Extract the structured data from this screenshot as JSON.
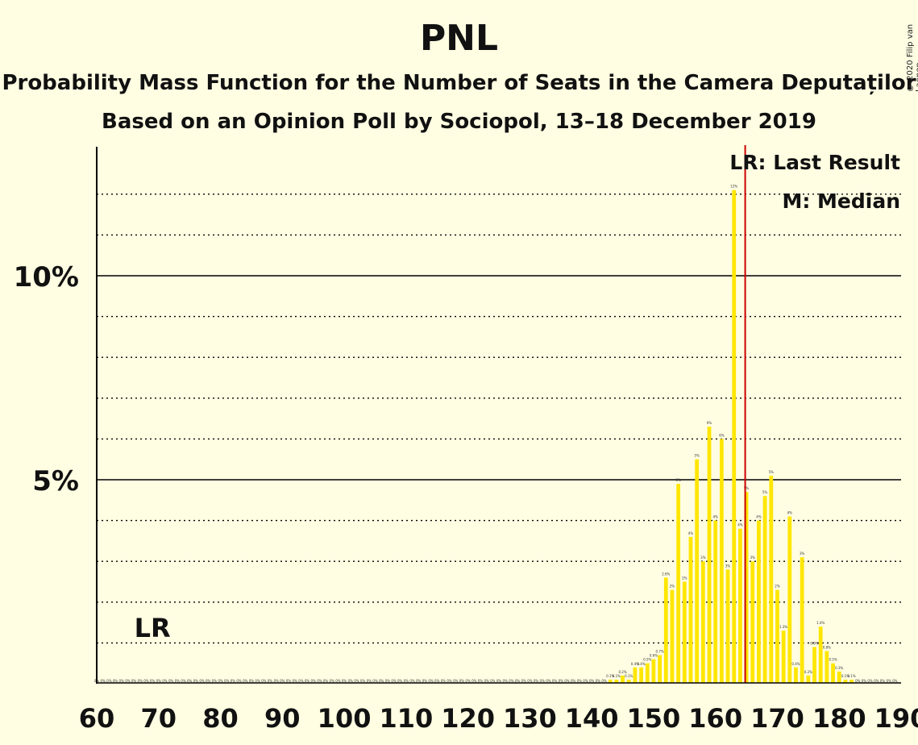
{
  "title": "PNL",
  "subtitle1": "Probability Mass Function for the Number of Seats in the Camera Deputaților",
  "subtitle2": "Based on an Opinion Poll by Sociopol, 13–18 December 2019",
  "copyright": "© 2020 Filip van Laenen",
  "colors": {
    "background": "#fffde2",
    "bar": "#ffe600",
    "last_result_line": "#cc0000",
    "axis": "#000000"
  },
  "chart_data": {
    "type": "bar",
    "x_range": [
      60,
      190
    ],
    "ylim": [
      0,
      13
    ],
    "y_unit": "%",
    "grid": "dotted every 1%, solid at 5% and 10%",
    "x_ticks": [
      "60",
      "70",
      "80",
      "90",
      "100",
      "110",
      "120",
      "130",
      "140",
      "150",
      "160",
      "170",
      "180",
      "190"
    ],
    "y_ticks": [
      {
        "value": 5,
        "label": "5%"
      },
      {
        "value": 10,
        "label": "10%"
      }
    ],
    "legend": {
      "position": "top-right",
      "items": [
        "LR: Last Result",
        "M: Median"
      ]
    },
    "last_result": {
      "seats": 69,
      "label": "LR"
    },
    "median": {
      "seats": 164,
      "label": "M"
    },
    "majority_line": 165,
    "bars": [
      {
        "seats": 143,
        "value": 0.1,
        "label": "0.1%"
      },
      {
        "seats": 144,
        "value": 0.1,
        "label": "0.1%"
      },
      {
        "seats": 145,
        "value": 0.2,
        "label": "0.2%"
      },
      {
        "seats": 146,
        "value": 0.1,
        "label": "0.1%"
      },
      {
        "seats": 147,
        "value": 0.4,
        "label": "0.4%"
      },
      {
        "seats": 148,
        "value": 0.4,
        "label": "0.4%"
      },
      {
        "seats": 149,
        "value": 0.5,
        "label": "0.5%"
      },
      {
        "seats": 150,
        "value": 0.6,
        "label": "0.6%"
      },
      {
        "seats": 151,
        "value": 0.7,
        "label": "0.7%"
      },
      {
        "seats": 152,
        "value": 2.6,
        "label": "2.6%"
      },
      {
        "seats": 153,
        "value": 2.3,
        "label": "2%"
      },
      {
        "seats": 154,
        "value": 4.9,
        "label": "5%"
      },
      {
        "seats": 155,
        "value": 2.5,
        "label": "2%"
      },
      {
        "seats": 156,
        "value": 3.6,
        "label": "4%"
      },
      {
        "seats": 157,
        "value": 5.5,
        "label": "5%"
      },
      {
        "seats": 158,
        "value": 3.0,
        "label": "3%"
      },
      {
        "seats": 159,
        "value": 6.3,
        "label": "6%"
      },
      {
        "seats": 160,
        "value": 4.0,
        "label": "4%"
      },
      {
        "seats": 161,
        "value": 6.0,
        "label": "6%"
      },
      {
        "seats": 162,
        "value": 2.8,
        "label": "3%"
      },
      {
        "seats": 163,
        "value": 12.1,
        "label": "12%"
      },
      {
        "seats": 164,
        "value": 3.8,
        "label": "4%"
      },
      {
        "seats": 165,
        "value": 4.7,
        "label": "5%"
      },
      {
        "seats": 166,
        "value": 3.0,
        "label": "3%"
      },
      {
        "seats": 167,
        "value": 4.0,
        "label": "4%"
      },
      {
        "seats": 168,
        "value": 4.6,
        "label": "5%"
      },
      {
        "seats": 169,
        "value": 5.1,
        "label": "5%"
      },
      {
        "seats": 170,
        "value": 2.3,
        "label": "2%"
      },
      {
        "seats": 171,
        "value": 1.3,
        "label": "1.3%"
      },
      {
        "seats": 172,
        "value": 4.1,
        "label": "4%"
      },
      {
        "seats": 173,
        "value": 0.4,
        "label": "0.4%"
      },
      {
        "seats": 174,
        "value": 3.1,
        "label": "3%"
      },
      {
        "seats": 175,
        "value": 0.2,
        "label": "0.2%"
      },
      {
        "seats": 176,
        "value": 0.9,
        "label": "0.9%"
      },
      {
        "seats": 177,
        "value": 1.4,
        "label": "1.4%"
      },
      {
        "seats": 178,
        "value": 0.8,
        "label": "0.8%"
      },
      {
        "seats": 179,
        "value": 0.5,
        "label": "0.5%"
      },
      {
        "seats": 180,
        "value": 0.3,
        "label": "0.3%"
      },
      {
        "seats": 181,
        "value": 0.1,
        "label": "0.1%"
      },
      {
        "seats": 182,
        "value": 0.1,
        "label": "0.1%"
      }
    ]
  }
}
